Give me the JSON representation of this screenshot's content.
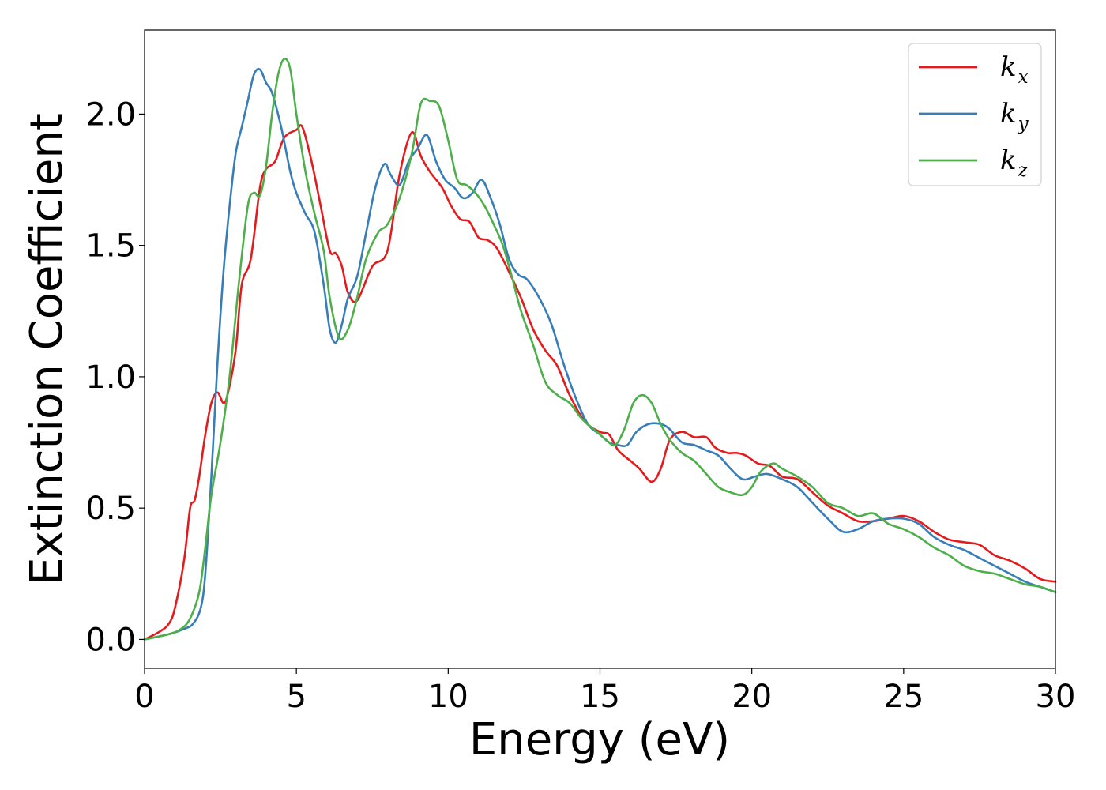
{
  "chart_data": {
    "type": "line",
    "xlabel": "Energy (eV)",
    "ylabel": "Extinction Coefficient",
    "xlim": [
      0,
      30
    ],
    "ylim": [
      -0.11,
      2.32
    ],
    "xticks": [
      0,
      5,
      10,
      15,
      20,
      25,
      30
    ],
    "xtick_labels": [
      "0",
      "5",
      "10",
      "15",
      "20",
      "25",
      "30"
    ],
    "yticks": [
      0.0,
      0.5,
      1.0,
      1.5,
      2.0
    ],
    "ytick_labels": [
      "0.0",
      "0.5",
      "1.0",
      "1.5",
      "2.0"
    ],
    "grid": false,
    "legend_position": "top-right",
    "series": [
      {
        "name": "kx",
        "legend_base": "k",
        "legend_sub": "x",
        "color": "#e41a1c",
        "x": [
          0,
          0.5,
          0.8,
          1.0,
          1.3,
          1.5,
          1.65,
          1.8,
          2.0,
          2.2,
          2.4,
          2.6,
          2.75,
          3.0,
          3.2,
          3.5,
          3.8,
          4.0,
          4.3,
          4.6,
          5.0,
          5.2,
          5.5,
          5.8,
          6.1,
          6.3,
          6.5,
          6.7,
          7.0,
          7.5,
          8.0,
          8.4,
          8.8,
          9.1,
          9.4,
          9.8,
          10.1,
          10.4,
          10.7,
          11.0,
          11.3,
          11.6,
          12.0,
          12.4,
          12.8,
          13.2,
          13.6,
          14.0,
          14.5,
          15.0,
          15.3,
          15.6,
          16.0,
          16.3,
          16.7,
          17.0,
          17.3,
          17.7,
          18.1,
          18.5,
          18.8,
          19.2,
          19.5,
          19.8,
          20.2,
          20.6,
          21.0,
          21.5,
          22.0,
          22.5,
          23.0,
          23.5,
          24.0,
          24.5,
          25.0,
          25.5,
          26.0,
          26.5,
          27.0,
          27.5,
          28.0,
          28.5,
          29.0,
          29.5,
          30.0
        ],
        "values": [
          0.0,
          0.03,
          0.06,
          0.12,
          0.3,
          0.5,
          0.53,
          0.62,
          0.78,
          0.9,
          0.94,
          0.9,
          0.94,
          1.1,
          1.35,
          1.45,
          1.72,
          1.79,
          1.82,
          1.91,
          1.94,
          1.95,
          1.82,
          1.65,
          1.48,
          1.47,
          1.42,
          1.32,
          1.29,
          1.42,
          1.48,
          1.77,
          1.93,
          1.84,
          1.78,
          1.72,
          1.65,
          1.6,
          1.59,
          1.53,
          1.52,
          1.49,
          1.4,
          1.3,
          1.18,
          1.1,
          1.04,
          0.93,
          0.83,
          0.79,
          0.78,
          0.72,
          0.68,
          0.65,
          0.6,
          0.65,
          0.76,
          0.79,
          0.77,
          0.77,
          0.73,
          0.71,
          0.71,
          0.7,
          0.67,
          0.66,
          0.62,
          0.61,
          0.56,
          0.51,
          0.48,
          0.45,
          0.45,
          0.46,
          0.47,
          0.45,
          0.41,
          0.38,
          0.37,
          0.36,
          0.32,
          0.3,
          0.27,
          0.23,
          0.22
        ]
      },
      {
        "name": "ky",
        "legend_base": "k",
        "legend_sub": "y",
        "color": "#377eb8",
        "x": [
          0,
          0.8,
          1.3,
          1.6,
          1.85,
          2.0,
          2.2,
          2.4,
          2.6,
          2.8,
          3.0,
          3.2,
          3.4,
          3.6,
          3.8,
          4.0,
          4.2,
          4.5,
          4.8,
          5.0,
          5.3,
          5.6,
          5.9,
          6.1,
          6.3,
          6.5,
          6.7,
          7.0,
          7.3,
          7.6,
          7.9,
          8.1,
          8.4,
          8.7,
          9.0,
          9.3,
          9.6,
          9.9,
          10.2,
          10.5,
          10.8,
          11.1,
          11.4,
          11.7,
          12.0,
          12.3,
          12.6,
          13.0,
          13.4,
          13.8,
          14.2,
          14.6,
          15.0,
          15.3,
          15.6,
          15.9,
          16.2,
          16.6,
          17.0,
          17.3,
          17.7,
          18.1,
          18.5,
          18.9,
          19.3,
          19.7,
          20.1,
          20.5,
          21.0,
          21.5,
          22.0,
          22.5,
          23.0,
          23.5,
          24.0,
          24.5,
          25.0,
          25.5,
          26.0,
          26.5,
          27.0,
          27.5,
          28.0,
          28.5,
          29.0,
          29.5,
          30.0
        ],
        "values": [
          0.0,
          0.02,
          0.04,
          0.06,
          0.12,
          0.25,
          0.62,
          1.05,
          1.4,
          1.65,
          1.85,
          1.95,
          2.05,
          2.15,
          2.17,
          2.12,
          2.08,
          1.95,
          1.78,
          1.7,
          1.62,
          1.55,
          1.35,
          1.18,
          1.13,
          1.2,
          1.3,
          1.38,
          1.55,
          1.72,
          1.81,
          1.77,
          1.73,
          1.82,
          1.87,
          1.92,
          1.82,
          1.75,
          1.72,
          1.68,
          1.7,
          1.75,
          1.68,
          1.58,
          1.45,
          1.39,
          1.37,
          1.3,
          1.2,
          1.05,
          0.92,
          0.82,
          0.78,
          0.75,
          0.74,
          0.74,
          0.79,
          0.82,
          0.82,
          0.8,
          0.75,
          0.74,
          0.72,
          0.7,
          0.65,
          0.61,
          0.62,
          0.63,
          0.61,
          0.58,
          0.52,
          0.46,
          0.41,
          0.42,
          0.45,
          0.46,
          0.46,
          0.44,
          0.39,
          0.36,
          0.34,
          0.31,
          0.28,
          0.25,
          0.22,
          0.2,
          0.18
        ]
      },
      {
        "name": "kz",
        "legend_base": "k",
        "legend_sub": "z",
        "color": "#4daf4a",
        "x": [
          0,
          0.8,
          1.2,
          1.5,
          1.8,
          2.0,
          2.2,
          2.5,
          2.8,
          3.1,
          3.4,
          3.6,
          3.8,
          4.0,
          4.2,
          4.4,
          4.6,
          4.8,
          5.0,
          5.3,
          5.6,
          5.9,
          6.1,
          6.4,
          6.7,
          7.0,
          7.3,
          7.7,
          8.0,
          8.4,
          8.8,
          9.1,
          9.4,
          9.7,
          10.0,
          10.3,
          10.6,
          10.9,
          11.2,
          11.5,
          11.8,
          12.1,
          12.4,
          12.8,
          13.2,
          13.6,
          14.0,
          14.4,
          14.8,
          15.2,
          15.5,
          15.8,
          16.1,
          16.4,
          16.7,
          17.0,
          17.3,
          17.7,
          18.1,
          18.5,
          18.9,
          19.3,
          19.7,
          20.0,
          20.3,
          20.7,
          21.0,
          21.5,
          22.0,
          22.5,
          23.0,
          23.5,
          24.0,
          24.5,
          25.0,
          25.5,
          26.0,
          26.5,
          27.0,
          27.5,
          28.0,
          28.5,
          29.0,
          29.5,
          30.0
        ],
        "values": [
          0.0,
          0.02,
          0.04,
          0.08,
          0.18,
          0.35,
          0.55,
          0.75,
          1.0,
          1.35,
          1.65,
          1.7,
          1.69,
          1.8,
          2.0,
          2.15,
          2.21,
          2.17,
          2.0,
          1.78,
          1.62,
          1.48,
          1.3,
          1.15,
          1.18,
          1.3,
          1.45,
          1.55,
          1.58,
          1.68,
          1.85,
          2.04,
          2.05,
          2.03,
          1.9,
          1.75,
          1.73,
          1.7,
          1.65,
          1.58,
          1.5,
          1.38,
          1.25,
          1.12,
          0.98,
          0.93,
          0.9,
          0.84,
          0.8,
          0.76,
          0.74,
          0.8,
          0.9,
          0.93,
          0.9,
          0.82,
          0.76,
          0.71,
          0.68,
          0.63,
          0.58,
          0.56,
          0.55,
          0.58,
          0.64,
          0.67,
          0.65,
          0.62,
          0.58,
          0.52,
          0.5,
          0.47,
          0.48,
          0.44,
          0.42,
          0.39,
          0.35,
          0.32,
          0.28,
          0.26,
          0.25,
          0.23,
          0.21,
          0.2,
          0.18
        ]
      }
    ]
  }
}
